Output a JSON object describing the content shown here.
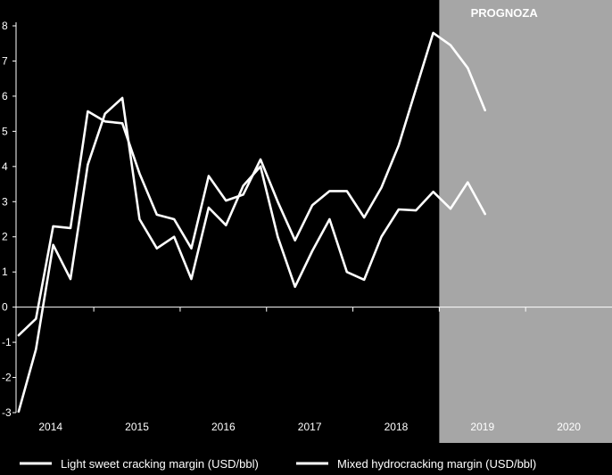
{
  "chart_data": {
    "type": "line",
    "title": "",
    "xlabel": "",
    "ylabel": "",
    "ylim": [
      -3,
      8
    ],
    "y_ticks": [
      8,
      7,
      6,
      5,
      4,
      3,
      2,
      1,
      0,
      -1,
      -2,
      -3
    ],
    "x_range": [
      2013.6,
      2020.5
    ],
    "x_ticks": [
      {
        "label": "2014",
        "x": 2014.0
      },
      {
        "label": "2015",
        "x": 2015.0
      },
      {
        "label": "2016",
        "x": 2016.0
      },
      {
        "label": "2017",
        "x": 2017.0
      },
      {
        "label": "2018",
        "x": 2018.0
      },
      {
        "label": "2019",
        "x": 2019.0
      },
      {
        "label": "2020",
        "x": 2020.0
      }
    ],
    "grid": false,
    "forecast_region": {
      "label": "PROGNOZA",
      "x_start": 2018.5,
      "x_end": 2020.5,
      "color": "#a6a6a6"
    },
    "legend_position": "bottom",
    "series": [
      {
        "name": "Light sweet cracking margin (USD/bbl)",
        "color": "#ffffff",
        "points": [
          [
            2013.63,
            -0.8
          ],
          [
            2013.83,
            -0.33
          ],
          [
            2014.03,
            2.3
          ],
          [
            2014.23,
            2.25
          ],
          [
            2014.43,
            5.57
          ],
          [
            2014.63,
            5.28
          ],
          [
            2014.83,
            5.23
          ],
          [
            2015.03,
            3.8
          ],
          [
            2015.23,
            2.63
          ],
          [
            2015.43,
            2.5
          ],
          [
            2015.63,
            1.67
          ],
          [
            2015.83,
            3.73
          ],
          [
            2016.03,
            3.03
          ],
          [
            2016.23,
            3.2
          ],
          [
            2016.43,
            4.2
          ],
          [
            2016.63,
            3.0
          ],
          [
            2016.83,
            1.9
          ],
          [
            2017.03,
            2.9
          ],
          [
            2017.23,
            3.3
          ],
          [
            2017.43,
            3.3
          ],
          [
            2017.63,
            2.55
          ],
          [
            2017.83,
            3.4
          ],
          [
            2018.03,
            4.6
          ],
          [
            2018.23,
            6.2
          ],
          [
            2018.43,
            7.8
          ],
          [
            2018.63,
            7.45
          ],
          [
            2018.83,
            6.8
          ],
          [
            2019.03,
            5.6
          ]
        ]
      },
      {
        "name": "Mixed hydrocracking margin (USD/bbl)",
        "color": "#ffffff",
        "points": [
          [
            2013.63,
            -2.97
          ],
          [
            2013.83,
            -1.2
          ],
          [
            2014.03,
            1.77
          ],
          [
            2014.23,
            0.8
          ],
          [
            2014.43,
            4.05
          ],
          [
            2014.63,
            5.5
          ],
          [
            2014.83,
            5.95
          ],
          [
            2015.03,
            2.5
          ],
          [
            2015.23,
            1.67
          ],
          [
            2015.43,
            2.0
          ],
          [
            2015.63,
            0.8
          ],
          [
            2015.83,
            2.83
          ],
          [
            2016.03,
            2.33
          ],
          [
            2016.23,
            3.45
          ],
          [
            2016.43,
            4.0
          ],
          [
            2016.63,
            2.0
          ],
          [
            2016.83,
            0.58
          ],
          [
            2017.03,
            1.6
          ],
          [
            2017.23,
            2.5
          ],
          [
            2017.43,
            1.0
          ],
          [
            2017.63,
            0.78
          ],
          [
            2017.83,
            2.0
          ],
          [
            2018.03,
            2.78
          ],
          [
            2018.23,
            2.75
          ],
          [
            2018.43,
            3.28
          ],
          [
            2018.63,
            2.8
          ],
          [
            2018.83,
            3.55
          ],
          [
            2019.03,
            2.65
          ]
        ]
      }
    ]
  }
}
